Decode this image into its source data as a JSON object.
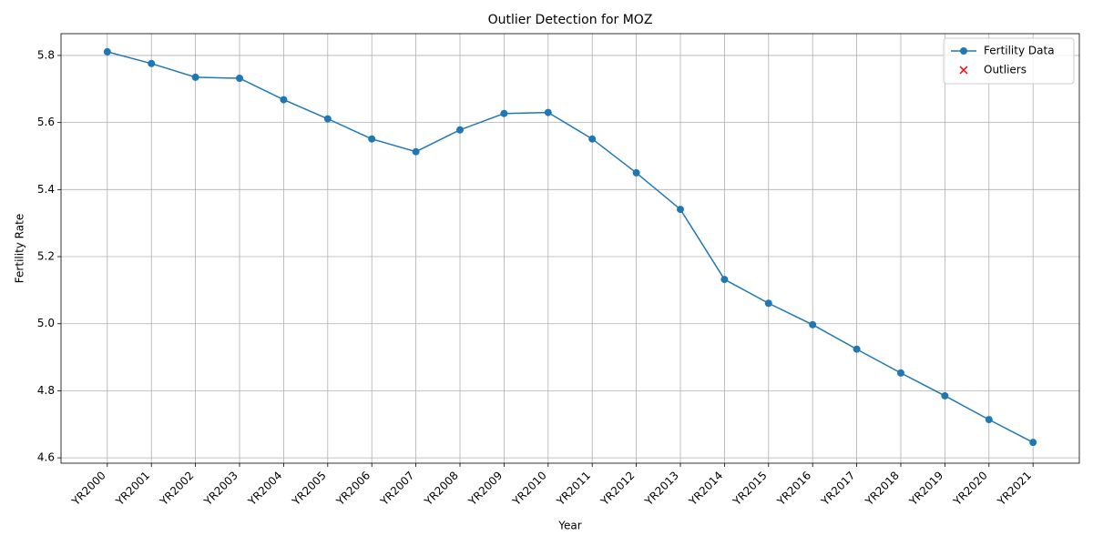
{
  "chart_data": {
    "type": "line",
    "title": "Outlier Detection for MOZ",
    "xlabel": "Year",
    "ylabel": "Fertility Rate",
    "categories": [
      "YR2000",
      "YR2001",
      "YR2002",
      "YR2003",
      "YR2004",
      "YR2005",
      "YR2006",
      "YR2007",
      "YR2008",
      "YR2009",
      "YR2010",
      "YR2011",
      "YR2012",
      "YR2013",
      "YR2014",
      "YR2015",
      "YR2016",
      "YR2017",
      "YR2018",
      "YR2019",
      "YR2020",
      "YR2021"
    ],
    "series": [
      {
        "name": "Fertility Data",
        "color": "#1f77b4",
        "marker": "o",
        "values": [
          5.811,
          5.776,
          5.735,
          5.732,
          5.668,
          5.611,
          5.551,
          5.513,
          5.578,
          5.627,
          5.63,
          5.551,
          5.45,
          5.341,
          5.132,
          5.061,
          4.997,
          4.924,
          4.853,
          4.785,
          4.714,
          4.646
        ]
      },
      {
        "name": "Outliers",
        "color": "#ff0000",
        "marker": "x",
        "values": [
          null,
          null,
          null,
          null,
          null,
          null,
          null,
          null,
          null,
          null,
          null,
          null,
          null,
          null,
          null,
          null,
          null,
          null,
          null,
          null,
          null,
          null
        ]
      }
    ],
    "ylim": [
      4.584,
      5.865
    ],
    "yticks": [
      {
        "value": 4.6,
        "label": "4.6"
      },
      {
        "value": 4.8,
        "label": "4.8"
      },
      {
        "value": 5.0,
        "label": "5.0"
      },
      {
        "value": 5.2,
        "label": "5.2"
      },
      {
        "value": 5.4,
        "label": "5.4"
      },
      {
        "value": 5.6,
        "label": "5.6"
      },
      {
        "value": 5.8,
        "label": "5.8"
      }
    ],
    "grid": true,
    "legend": "upper right"
  }
}
